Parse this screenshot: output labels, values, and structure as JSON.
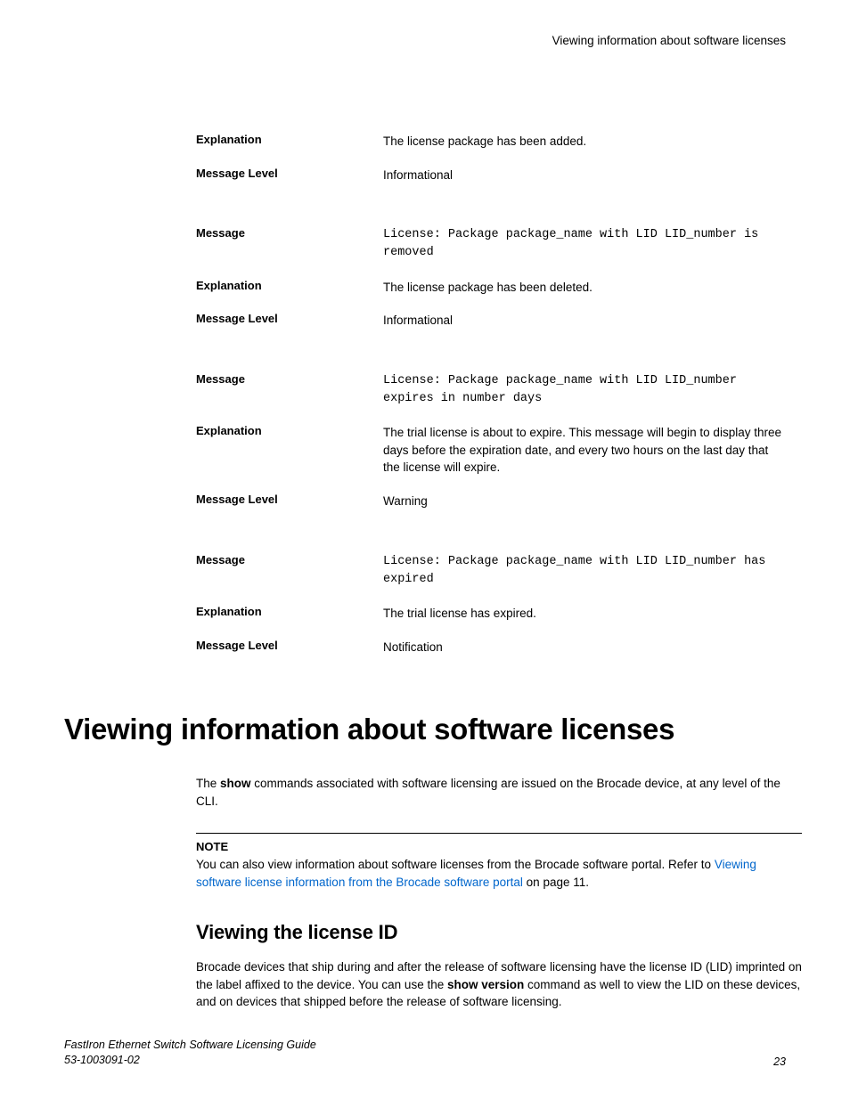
{
  "header": {
    "running_title": "Viewing information about software licenses"
  },
  "labels": {
    "explanation": "Explanation",
    "message_level": "Message Level",
    "message": "Message"
  },
  "blocks": [
    {
      "rows": [
        {
          "label_key": "explanation",
          "value": "The license package has been added.",
          "mono": false
        },
        {
          "label_key": "message_level",
          "value": "Informational",
          "mono": false
        }
      ]
    },
    {
      "rows": [
        {
          "label_key": "message",
          "value": "License: Package package_name with LID LID_number is removed",
          "mono": true
        },
        {
          "label_key": "explanation",
          "value": "The license package has been deleted.",
          "mono": false
        },
        {
          "label_key": "message_level",
          "value": "Informational",
          "mono": false
        }
      ]
    },
    {
      "rows": [
        {
          "label_key": "message",
          "value": "License: Package package_name with LID LID_number expires in number days",
          "mono": true
        },
        {
          "label_key": "explanation",
          "value": "The trial license is about to expire. This message will begin to display three days before the expiration date, and every two hours on the last day that the license will expire.",
          "mono": false
        },
        {
          "label_key": "message_level",
          "value": "Warning",
          "mono": false
        }
      ]
    },
    {
      "rows": [
        {
          "label_key": "message",
          "value": "License: Package package_name with LID LID_number has expired",
          "mono": true
        },
        {
          "label_key": "explanation",
          "value": "The trial license has expired.",
          "mono": false
        },
        {
          "label_key": "message_level",
          "value": "Notification",
          "mono": false
        }
      ]
    }
  ],
  "h1": "Viewing information about software licenses",
  "intro": {
    "pre": "The ",
    "bold1": "show",
    "post": " commands associated with software licensing are issued on the Brocade device, at any level of the CLI."
  },
  "note": {
    "label": "NOTE",
    "pre": "You can also view information about software licenses from the Brocade software portal. Refer to ",
    "link": "Viewing software license information from the Brocade software portal",
    "post": " on page 11."
  },
  "h2": "Viewing the license ID",
  "h2body": {
    "pre": "Brocade devices that ship during and after the release of software licensing have the license ID (LID) imprinted on the label affixed to the device. You can use the ",
    "bold": "show version",
    "post": " command as well to view the LID on these devices, and on devices that shipped before the release of software licensing."
  },
  "footer": {
    "title": "FastIron Ethernet Switch Software Licensing Guide",
    "docnum": "53-1003091-02",
    "page": "23"
  }
}
